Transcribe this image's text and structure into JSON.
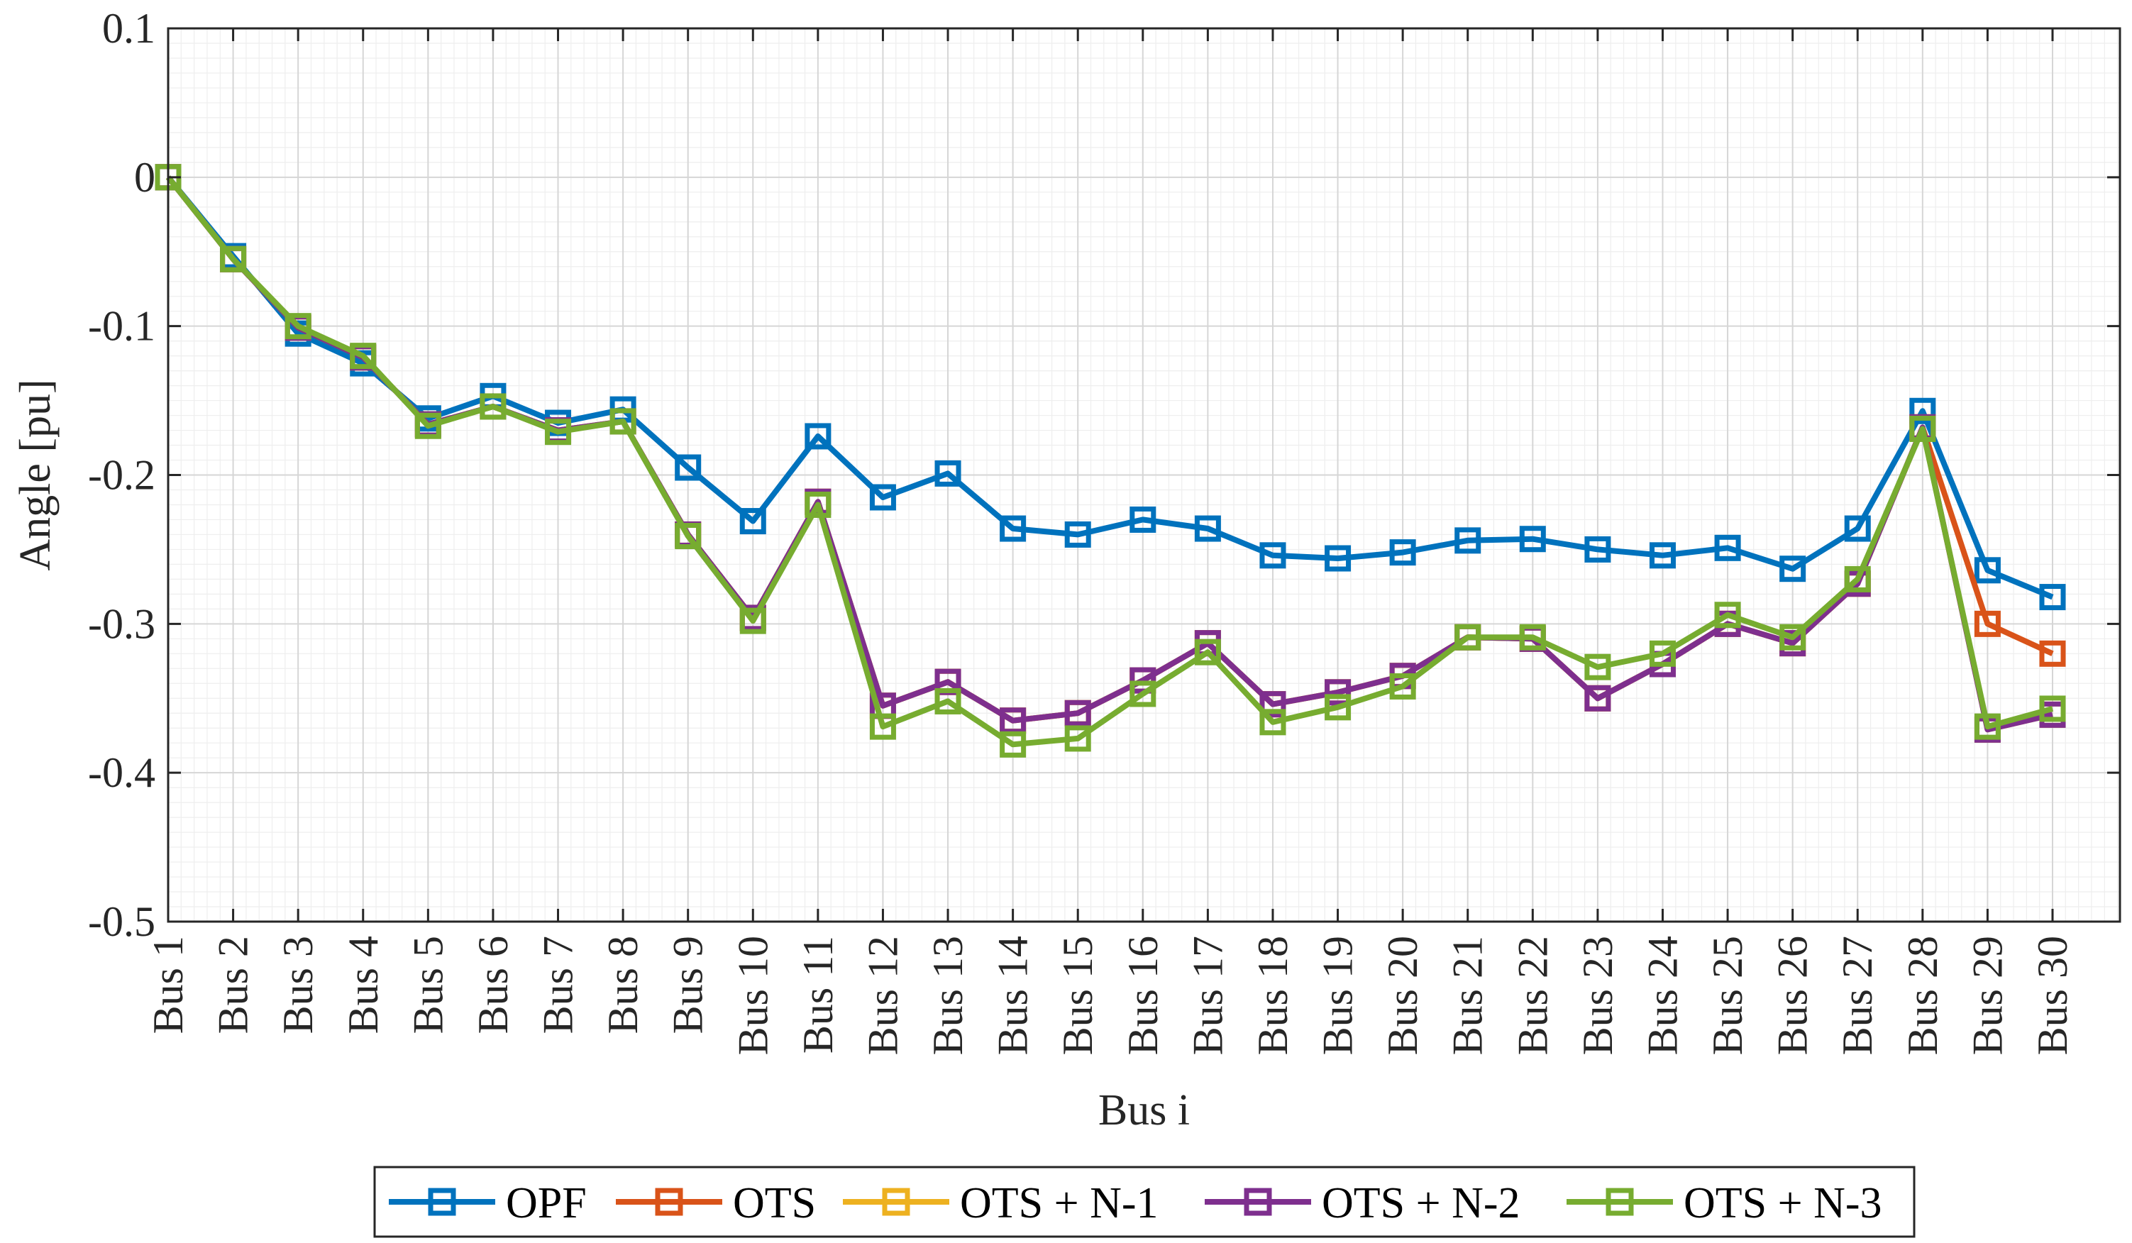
{
  "chart_data": {
    "type": "line",
    "title": "",
    "xlabel": "Bus i",
    "ylabel": "Angle [pu]",
    "ylim": [
      -0.5,
      0.1
    ],
    "yticks": [
      0.1,
      0,
      -0.1,
      -0.2,
      -0.3,
      -0.4,
      -0.5
    ],
    "ytick_labels": [
      "0.1",
      "0",
      "-0.1",
      "-0.2",
      "-0.3",
      "-0.4",
      "-0.5"
    ],
    "grid": true,
    "minor_grid": true,
    "legend_position": "bottom, outside",
    "marker": "square",
    "categories": [
      "Bus 1",
      "Bus 2",
      "Bus 3",
      "Bus 4",
      "Bus 5",
      "Bus 6",
      "Bus 7",
      "Bus 8",
      "Bus 9",
      "Bus 10",
      "Bus 11",
      "Bus 12",
      "Bus 13",
      "Bus 14",
      "Bus 15",
      "Bus 16",
      "Bus 17",
      "Bus 18",
      "Bus 19",
      "Bus 20",
      "Bus 21",
      "Bus 22",
      "Bus 23",
      "Bus 24",
      "Bus 25",
      "Bus 26",
      "Bus 27",
      "Bus 28",
      "Bus 29",
      "Bus 30"
    ],
    "series": [
      {
        "name": "OPF",
        "color": "#0072BD",
        "values": [
          0,
          -0.053,
          -0.105,
          -0.125,
          -0.162,
          -0.147,
          -0.165,
          -0.156,
          -0.195,
          -0.231,
          -0.174,
          -0.215,
          -0.199,
          -0.236,
          -0.24,
          -0.23,
          -0.236,
          -0.254,
          -0.256,
          -0.252,
          -0.244,
          -0.243,
          -0.25,
          -0.254,
          -0.249,
          -0.263,
          -0.236,
          -0.157,
          -0.264,
          -0.282
        ]
      },
      {
        "name": "OTS",
        "color": "#D95319",
        "values": [
          0,
          -0.055,
          -0.101,
          -0.121,
          -0.166,
          -0.154,
          -0.17,
          -0.164,
          -0.24,
          -0.296,
          -0.218,
          -0.355,
          -0.339,
          -0.365,
          -0.36,
          -0.338,
          -0.313,
          -0.354,
          -0.346,
          -0.335,
          -0.309,
          -0.31,
          -0.35,
          -0.327,
          -0.3,
          -0.313,
          -0.273,
          -0.168,
          -0.3,
          -0.32
        ]
      },
      {
        "name": "OTS + N-1",
        "color": "#EDB120",
        "values": [
          0,
          -0.055,
          -0.101,
          -0.121,
          -0.166,
          -0.154,
          -0.17,
          -0.164,
          -0.24,
          -0.296,
          -0.218,
          -0.355,
          -0.339,
          -0.365,
          -0.36,
          -0.338,
          -0.313,
          -0.354,
          -0.346,
          -0.335,
          -0.309,
          -0.31,
          -0.35,
          -0.327,
          -0.3,
          -0.313,
          -0.273,
          -0.168,
          -0.371,
          -0.361
        ]
      },
      {
        "name": "OTS + N-2",
        "color": "#7E2F8E",
        "values": [
          0,
          -0.055,
          -0.101,
          -0.121,
          -0.166,
          -0.154,
          -0.17,
          -0.164,
          -0.24,
          -0.296,
          -0.218,
          -0.355,
          -0.339,
          -0.365,
          -0.36,
          -0.338,
          -0.313,
          -0.354,
          -0.346,
          -0.335,
          -0.309,
          -0.31,
          -0.35,
          -0.327,
          -0.3,
          -0.313,
          -0.273,
          -0.168,
          -0.371,
          -0.361
        ]
      },
      {
        "name": "OTS + N-3",
        "color": "#77AC30",
        "values": [
          0,
          -0.055,
          -0.1,
          -0.12,
          -0.167,
          -0.154,
          -0.171,
          -0.164,
          -0.241,
          -0.298,
          -0.22,
          -0.369,
          -0.352,
          -0.381,
          -0.377,
          -0.347,
          -0.319,
          -0.366,
          -0.356,
          -0.342,
          -0.309,
          -0.309,
          -0.329,
          -0.32,
          -0.294,
          -0.309,
          -0.27,
          -0.169,
          -0.369,
          -0.357
        ]
      }
    ]
  }
}
